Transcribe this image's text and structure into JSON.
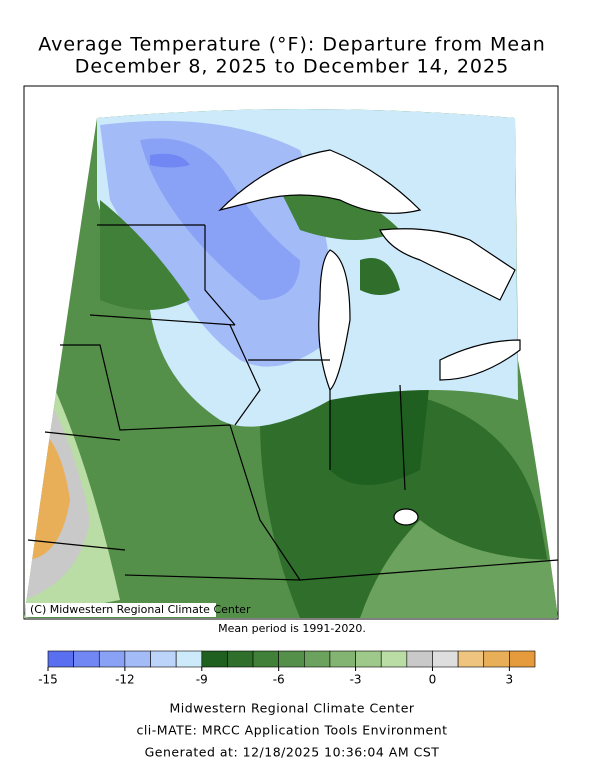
{
  "header": {
    "title": "Average Temperature (°F): Departure from Mean",
    "subtitle": "December 8, 2025 to December 14, 2025"
  },
  "map": {
    "copyright": "(C) Midwestern Regional Climate Center"
  },
  "note": "Mean period is 1991-2020.",
  "legend": {
    "bins": [
      -15,
      -14,
      -13,
      -12,
      -11,
      -10,
      -9,
      -8,
      -7,
      -6,
      -5,
      -4,
      -3,
      -2,
      -1,
      0,
      1,
      2,
      3,
      4
    ],
    "colors": [
      "#5a6ff0",
      "#7188f4",
      "#8aa2f6",
      "#a3bcf8",
      "#bcd3fa",
      "#cdeafb",
      "#1f5f1f",
      "#2f6f2b",
      "#408038",
      "#55904a",
      "#6ba25d",
      "#84b472",
      "#9ec98a",
      "#b9dda5",
      "#c9c9c9",
      "#dedede",
      "#eec47e",
      "#e9ae58",
      "#e59b3b"
    ],
    "ticks": [
      -15,
      -12,
      -9,
      -6,
      -3,
      0,
      3
    ]
  },
  "footer": {
    "line1": "Midwestern Regional Climate Center",
    "line2": "cli-MATE: MRCC Application Tools Environment",
    "line3": "Generated at: 12/18/2025 10:36:04 AM CST"
  }
}
